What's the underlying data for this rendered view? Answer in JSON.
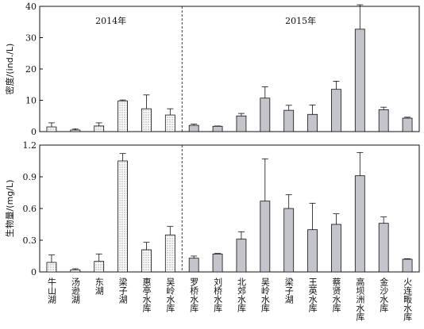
{
  "chart_data": [
    {
      "type": "bar",
      "panel": "density",
      "ylabel": "密度/(ind./L)",
      "ylim": [
        0,
        40
      ],
      "yticks": [
        "0",
        "10",
        "20",
        "30",
        "40"
      ],
      "group_labels": [
        "2014年",
        "2015年"
      ],
      "categories": [
        "牛山湖",
        "汤逊湖",
        "东湖",
        "梁子湖",
        "惠亭水库",
        "吴岭水库",
        "罗桥水库",
        "刘桥水库",
        "北郊水库",
        "吴岭水库",
        "梁子湖",
        "王英水库",
        "蔡贤水库",
        "高坝洲水库",
        "金沙水库",
        "火连畈水库"
      ],
      "values": [
        1.5,
        0.5,
        1.8,
        9.8,
        7.3,
        5.3,
        2.0,
        1.7,
        5.0,
        10.7,
        6.8,
        5.5,
        13.5,
        32.7,
        7.0,
        4.3
      ],
      "errors": [
        1.3,
        0.3,
        1.0,
        0.3,
        4.4,
        2.0,
        0.4,
        0.1,
        0.8,
        3.6,
        1.6,
        3.0,
        2.6,
        7.8,
        0.8,
        0.3
      ],
      "patterns": [
        "dot",
        "dot",
        "dot",
        "dot",
        "dot",
        "dot",
        "gray",
        "gray",
        "gray",
        "gray",
        "gray",
        "gray",
        "gray",
        "gray",
        "gray",
        "gray"
      ]
    },
    {
      "type": "bar",
      "panel": "biomass",
      "ylabel": "生物量/(mg/L)",
      "ylim": [
        0,
        1.2
      ],
      "yticks": [
        "0",
        "0.3",
        "0.6",
        "0.9",
        "1.2"
      ],
      "categories": [
        "牛山湖",
        "汤逊湖",
        "东湖",
        "梁子湖",
        "惠亭水库",
        "吴岭水库",
        "罗桥水库",
        "刘桥水库",
        "北郊水库",
        "吴岭水库",
        "梁子湖",
        "王英水库",
        "蔡贤水库",
        "高坝洲水库",
        "金沙水库",
        "火连畈水库"
      ],
      "values": [
        0.09,
        0.02,
        0.1,
        1.05,
        0.21,
        0.35,
        0.13,
        0.17,
        0.31,
        0.67,
        0.6,
        0.4,
        0.45,
        0.91,
        0.46,
        0.12
      ],
      "errors": [
        0.07,
        0.01,
        0.07,
        0.07,
        0.07,
        0.08,
        0.02,
        0.005,
        0.07,
        0.4,
        0.13,
        0.25,
        0.1,
        0.22,
        0.06,
        0.005
      ],
      "patterns": [
        "dot",
        "dot",
        "dot",
        "dot",
        "dot",
        "dot",
        "gray",
        "gray",
        "gray",
        "gray",
        "gray",
        "gray",
        "gray",
        "gray",
        "gray",
        "gray"
      ]
    }
  ],
  "colors": {
    "bar_gray": "#c4c4cc",
    "axis": "#111111",
    "dots": "#333333"
  }
}
